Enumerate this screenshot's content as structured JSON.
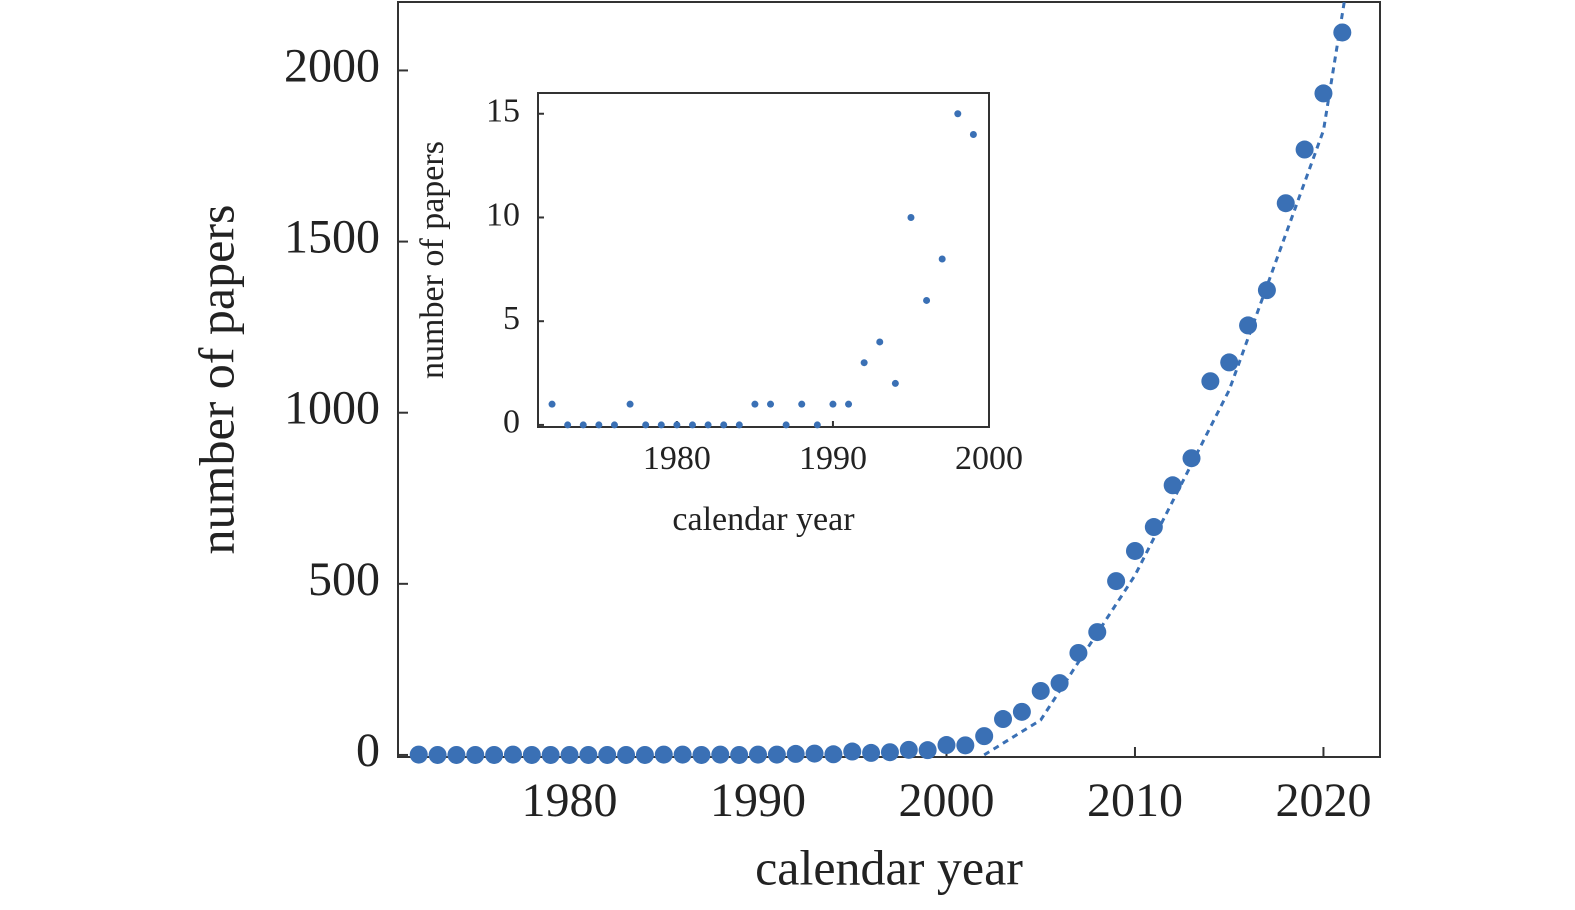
{
  "chart_data": [
    {
      "type": "scatter",
      "xlabel": "calendar year",
      "ylabel": "number of papers",
      "xlim": [
        1970.9,
        2023.0
      ],
      "ylim": [
        -6,
        2200
      ],
      "xticks": [
        1980,
        1990,
        2000,
        2010,
        2020
      ],
      "yticks": [
        0,
        500,
        1000,
        1500,
        2000
      ],
      "x": [
        1972,
        1973,
        1974,
        1975,
        1976,
        1977,
        1978,
        1979,
        1980,
        1981,
        1982,
        1983,
        1984,
        1985,
        1986,
        1987,
        1988,
        1989,
        1990,
        1991,
        1992,
        1993,
        1994,
        1995,
        1996,
        1997,
        1998,
        1999,
        2000,
        2001,
        2002,
        2003,
        2004,
        2005,
        2006,
        2007,
        2008,
        2009,
        2010,
        2011,
        2012,
        2013,
        2014,
        2015,
        2016,
        2017,
        2018,
        2019,
        2020,
        2021
      ],
      "series": [
        {
          "color": "#3a70b5",
          "values": [
            1,
            0,
            0,
            0,
            0,
            1,
            0,
            0,
            0,
            0,
            0,
            0,
            0,
            1,
            1,
            0,
            1,
            0,
            1,
            1,
            3,
            4,
            2,
            10,
            6,
            8,
            15,
            14,
            29,
            28,
            55,
            105,
            126,
            187,
            210,
            298,
            359,
            508,
            596,
            666,
            788,
            867,
            1092,
            1147,
            1255,
            1358,
            1612,
            1769,
            1933,
            2111
          ]
        }
      ],
      "fit": {
        "color": "#3a70b5",
        "x": [
          2002,
          2005,
          2010,
          2015,
          2020,
          2021.1
        ],
        "values": [
          0,
          102,
          525,
          1066,
          1825,
          2199
        ]
      }
    },
    {
      "type": "scatter",
      "xlabel": "calendar year",
      "ylabel": "number of papers",
      "xlim": [
        1971.1,
        2000
      ],
      "ylim": [
        -0.1,
        16
      ],
      "xticks": [
        1980,
        1990,
        2000
      ],
      "yticks": [
        0,
        5,
        10,
        15
      ],
      "x": [
        1972,
        1973,
        1974,
        1975,
        1976,
        1977,
        1978,
        1979,
        1980,
        1981,
        1982,
        1983,
        1984,
        1985,
        1986,
        1987,
        1988,
        1989,
        1990,
        1991,
        1992,
        1993,
        1994,
        1995,
        1996,
        1997,
        1998,
        1999
      ],
      "series": [
        {
          "color": "#3a70b5",
          "values": [
            1,
            0,
            0,
            0,
            0,
            1,
            0,
            0,
            0,
            0,
            0,
            0,
            0,
            1,
            1,
            0,
            1,
            0,
            1,
            1,
            3,
            4,
            2,
            10,
            6,
            8,
            15,
            14
          ]
        }
      ]
    }
  ]
}
